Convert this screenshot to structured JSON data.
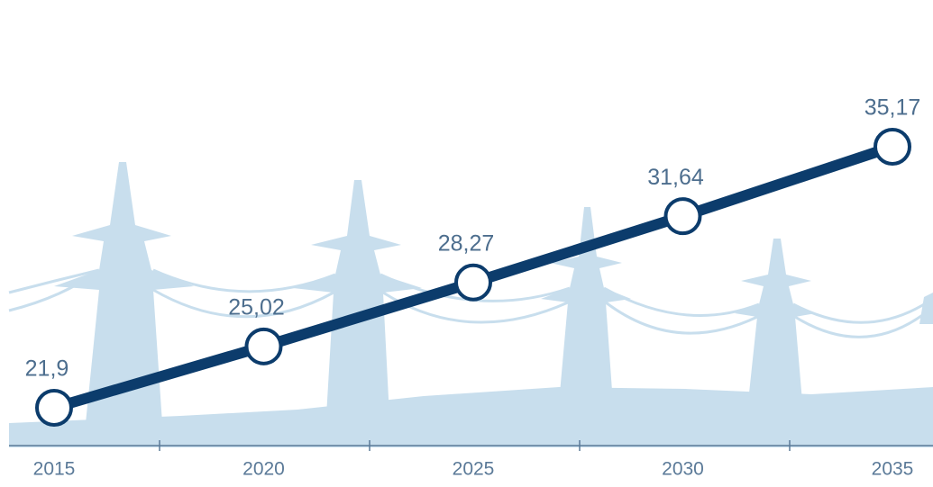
{
  "chart_data": {
    "type": "line",
    "categories": [
      "2015",
      "2020",
      "2025",
      "2030",
      "2035"
    ],
    "series": [
      {
        "color": "#0c3c6c",
        "values": [
          21.9,
          25.02,
          28.27,
          31.64,
          35.17
        ],
        "value_labels": [
          "21,9",
          "25,02",
          "28,27",
          "31,64",
          "35,17"
        ]
      }
    ]
  }
}
